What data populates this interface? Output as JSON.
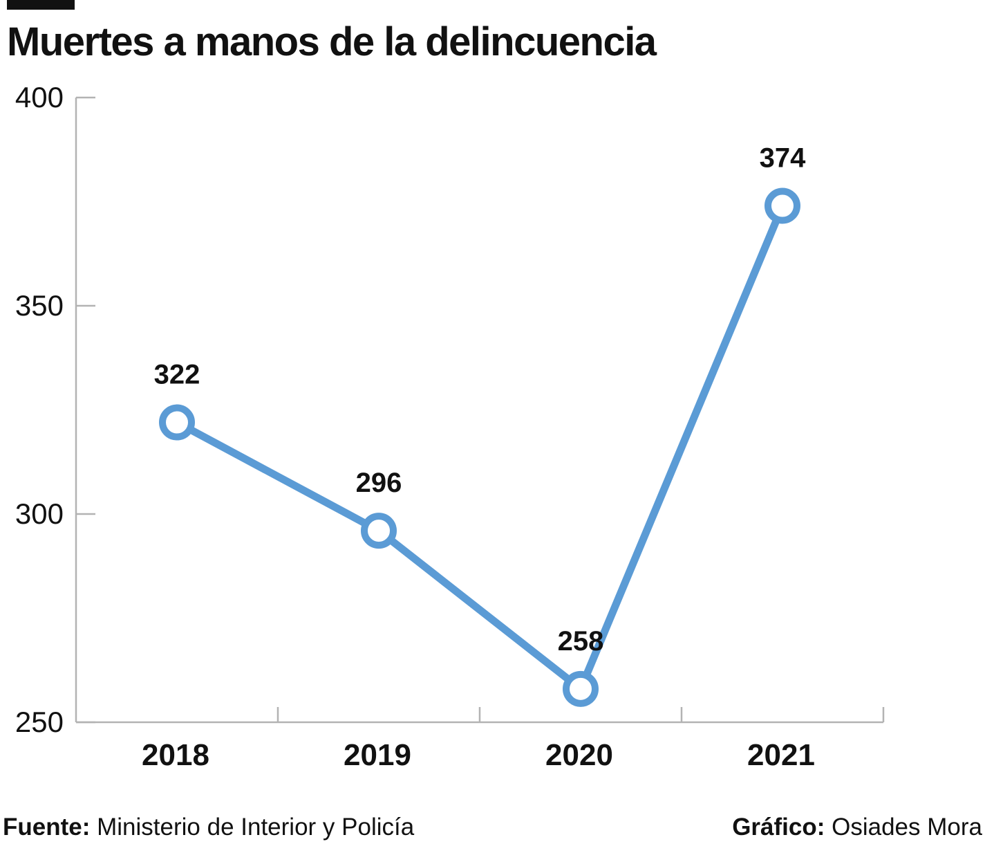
{
  "header": {
    "title": "Muertes a manos de la delincuencia"
  },
  "footer": {
    "source_label": "Fuente:",
    "source_text": "Ministerio de Interior y Policía",
    "credit_label": "Gráfico:",
    "credit_text": "Osiades Mora"
  },
  "colors": {
    "line": "#5b9bd5",
    "axis": "#b3b3b3",
    "text": "#111111"
  },
  "chart_data": {
    "type": "line",
    "title": "Muertes a manos de la delincuencia",
    "xlabel": "",
    "ylabel": "",
    "categories": [
      "2018",
      "2019",
      "2020",
      "2021"
    ],
    "series": [
      {
        "values": [
          322,
          296,
          258,
          374
        ],
        "labels": [
          "322",
          "296",
          "258",
          "374"
        ]
      }
    ],
    "ylim": [
      250,
      400
    ],
    "yticks": [
      250,
      300,
      350,
      400
    ],
    "grid": false,
    "legend": "none"
  }
}
